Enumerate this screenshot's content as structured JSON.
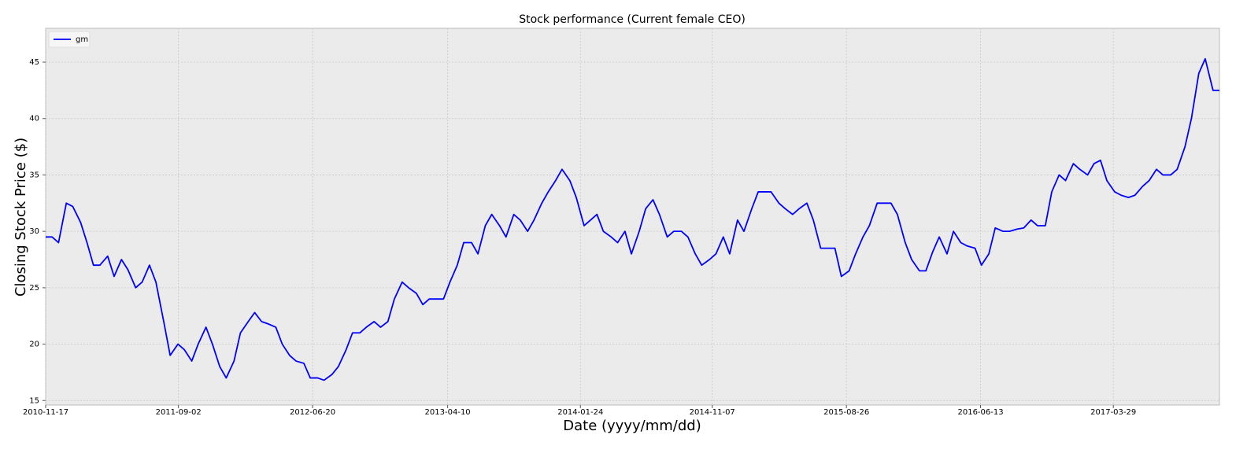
{
  "chart_data": {
    "type": "line",
    "title": "Stock performance (Current female CEO)",
    "xlabel": "Date (yyyy/mm/dd)",
    "ylabel": "Closing Stock Price ($)",
    "x": [
      "2010-11-17",
      "2010-12-01",
      "2010-12-15",
      "2011-01-01",
      "2011-01-15",
      "2011-02-01",
      "2011-02-15",
      "2011-03-01",
      "2011-03-15",
      "2011-04-01",
      "2011-04-15",
      "2011-05-01",
      "2011-05-15",
      "2011-06-01",
      "2011-06-15",
      "2011-07-01",
      "2011-07-15",
      "2011-08-01",
      "2011-08-15",
      "2011-09-01",
      "2011-09-15",
      "2011-10-01",
      "2011-10-15",
      "2011-11-01",
      "2011-11-15",
      "2011-12-01",
      "2011-12-15",
      "2012-01-01",
      "2012-01-15",
      "2012-02-01",
      "2012-02-15",
      "2012-03-01",
      "2012-03-15",
      "2012-04-01",
      "2012-04-15",
      "2012-05-01",
      "2012-05-15",
      "2012-06-01",
      "2012-06-15",
      "2012-07-01",
      "2012-07-15",
      "2012-08-01",
      "2012-08-15",
      "2012-09-01",
      "2012-09-15",
      "2012-10-01",
      "2012-10-15",
      "2012-11-01",
      "2012-11-15",
      "2012-12-01",
      "2012-12-15",
      "2013-01-01",
      "2013-01-15",
      "2013-02-01",
      "2013-02-15",
      "2013-03-01",
      "2013-03-15",
      "2013-04-01",
      "2013-04-15",
      "2013-05-01",
      "2013-05-15",
      "2013-06-01",
      "2013-06-15",
      "2013-07-01",
      "2013-07-15",
      "2013-08-01",
      "2013-08-15",
      "2013-09-01",
      "2013-09-15",
      "2013-10-01",
      "2013-10-15",
      "2013-11-01",
      "2013-11-15",
      "2013-12-01",
      "2013-12-15",
      "2014-01-01",
      "2014-01-15",
      "2014-02-01",
      "2014-02-15",
      "2014-03-01",
      "2014-03-15",
      "2014-04-01",
      "2014-04-15",
      "2014-05-01",
      "2014-05-15",
      "2014-06-01",
      "2014-06-15",
      "2014-07-01",
      "2014-07-15",
      "2014-08-01",
      "2014-08-15",
      "2014-09-01",
      "2014-09-15",
      "2014-10-01",
      "2014-10-15",
      "2014-11-01",
      "2014-11-15",
      "2014-12-01",
      "2014-12-15",
      "2015-01-01",
      "2015-01-15",
      "2015-02-01",
      "2015-02-15",
      "2015-03-01",
      "2015-03-15",
      "2015-04-01",
      "2015-04-15",
      "2015-05-01",
      "2015-05-15",
      "2015-06-01",
      "2015-06-15",
      "2015-07-01",
      "2015-07-15",
      "2015-08-01",
      "2015-08-15",
      "2015-09-01",
      "2015-09-15",
      "2015-10-01",
      "2015-10-15",
      "2015-11-01",
      "2015-11-15",
      "2015-12-01",
      "2015-12-15",
      "2016-01-01",
      "2016-01-15",
      "2016-02-01",
      "2016-02-15",
      "2016-03-01",
      "2016-03-15",
      "2016-04-01",
      "2016-04-15",
      "2016-05-01",
      "2016-05-15",
      "2016-06-01",
      "2016-06-15",
      "2016-07-01",
      "2016-07-15",
      "2016-08-01",
      "2016-08-15",
      "2016-09-01",
      "2016-09-15",
      "2016-10-01",
      "2016-10-15",
      "2016-11-01",
      "2016-11-15",
      "2016-12-01",
      "2016-12-15",
      "2017-01-01",
      "2017-01-15",
      "2017-02-01",
      "2017-02-15",
      "2017-03-01",
      "2017-03-15",
      "2017-04-01",
      "2017-04-15",
      "2017-05-01",
      "2017-05-15",
      "2017-06-01",
      "2017-06-15",
      "2017-07-01",
      "2017-07-15",
      "2017-08-01",
      "2017-08-15",
      "2017-09-01",
      "2017-09-15",
      "2017-10-01",
      "2017-10-15",
      "2017-11-01",
      "2017-11-15"
    ],
    "series": [
      {
        "name": "gm",
        "color": "#0000ff",
        "values": [
          29.5,
          29.5,
          29,
          32.5,
          32.2,
          30.8,
          29,
          27,
          27,
          27.8,
          26,
          27.5,
          26.6,
          25,
          25.5,
          27,
          25.5,
          22,
          19,
          20,
          19.5,
          18.5,
          20,
          21.5,
          20,
          18,
          17,
          18.5,
          21,
          22,
          22.8,
          22,
          21.8,
          21.5,
          20,
          19,
          18.5,
          18.3,
          17,
          17,
          16.8,
          17.3,
          18,
          19.5,
          21,
          21,
          21.5,
          22,
          21.5,
          22,
          24,
          25.5,
          25,
          24.5,
          23.5,
          24,
          24,
          24,
          25.5,
          27,
          29,
          29,
          28,
          30.5,
          31.5,
          30.5,
          29.5,
          31.5,
          31,
          30,
          31,
          32.5,
          33.5,
          34.5,
          35.5,
          34.5,
          33,
          30.5,
          31,
          31.5,
          30,
          29.5,
          29,
          30,
          28,
          30,
          32,
          32.8,
          31.5,
          29.5,
          30,
          30,
          29.5,
          28,
          27,
          27.5,
          28,
          29.5,
          28,
          31,
          30,
          32,
          33.5,
          33.5,
          33.5,
          32.5,
          32,
          31.5,
          32,
          32.5,
          31,
          28.5,
          28.5,
          28.5,
          26,
          26.5,
          28,
          29.5,
          30.5,
          32.5,
          32.5,
          32.5,
          31.5,
          29,
          27.5,
          26.5,
          26.5,
          28.2,
          29.5,
          28,
          30,
          29,
          28.7,
          28.5,
          27,
          28,
          30.3,
          30,
          30,
          30.2,
          30.3,
          31,
          30.5,
          30.5,
          33.5,
          35,
          34.5,
          36,
          35.5,
          35,
          36,
          36.3,
          34.5,
          33.5,
          33.2,
          33,
          33.2,
          34,
          34.5,
          35.5,
          35,
          35,
          35.5,
          37.5,
          40,
          44,
          45.3,
          42.5,
          42.5
        ]
      }
    ],
    "xlim": [
      "2010-11-17",
      "2017-11-15"
    ],
    "xticks": [
      "2010-11-17",
      "2011-09-02",
      "2012-06-20",
      "2013-04-10",
      "2014-01-24",
      "2014-11-07",
      "2015-08-26",
      "2016-06-13",
      "2017-03-29"
    ],
    "ylim": [
      14.6,
      48
    ],
    "yticks": [
      15,
      20,
      25,
      30,
      35,
      40,
      45
    ],
    "grid": true,
    "legend": "upper left"
  }
}
